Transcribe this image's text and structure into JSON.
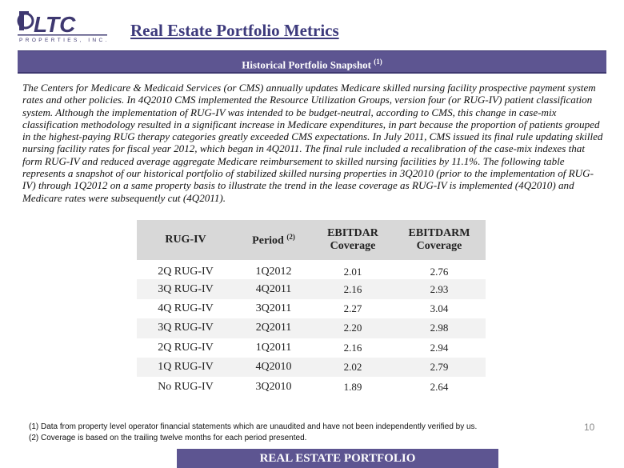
{
  "header": {
    "title": "Real Estate Portfolio Metrics",
    "logo": {
      "main": "LTC",
      "sub": "PROPERTIES, INC."
    }
  },
  "banner": {
    "text": "Historical Portfolio Snapshot",
    "footnote_ref": "(1)"
  },
  "intro": "The Centers for Medicare & Medicaid Services (or CMS) annually updates Medicare skilled nursing facility prospective payment system rates and other policies.  In 4Q2010 CMS implemented the Resource Utilization Groups, version four (or RUG-IV) patient classification system.  Although the implementation of RUG-IV was intended to be budget-neutral, according to CMS, this change in case-mix classification methodology resulted in a significant increase in Medicare expenditures, in part because the proportion of patients grouped in the highest-paying RUG therapy categories greatly exceeded CMS expectations.  In July 2011, CMS issued its final rule updating skilled nursing facility rates for fiscal year 2012, which began in 4Q2011.  The final rule included a recalibration of the case-mix indexes that form RUG-IV and reduced average aggregate Medicare reimbursement to skilled nursing facilities by 11.1%.  The following table represents a snapshot of our historical portfolio of stabilized skilled nursing properties in 3Q2010 (prior to the implementation of RUG-IV) through 1Q2012 on a same property basis to illustrate the trend in the lease coverage as RUG-IV is implemented (4Q2010) and Medicare rates were subsequently cut (4Q2011).",
  "table": {
    "headers": {
      "rug": "RUG-IV",
      "period": "Period",
      "period_ref": "(2)",
      "ebitdar_1": "EBITDAR",
      "ebitdar_2": "Coverage",
      "ebitdarm_1": "EBITDARM",
      "ebitdarm_2": "Coverage"
    },
    "rows": [
      {
        "rug": "2Q RUG-IV",
        "period": "1Q2012",
        "ebitdar": "2.01",
        "ebitdarm": "2.76"
      },
      {
        "rug": "3Q RUG-IV",
        "period": "4Q2011",
        "ebitdar": "2.16",
        "ebitdarm": "2.93"
      },
      {
        "rug": "4Q RUG-IV",
        "period": "3Q2011",
        "ebitdar": "2.27",
        "ebitdarm": "3.04"
      },
      {
        "rug": "3Q RUG-IV",
        "period": "2Q2011",
        "ebitdar": "2.20",
        "ebitdarm": "2.98"
      },
      {
        "rug": "2Q RUG-IV",
        "period": "1Q2011",
        "ebitdar": "2.16",
        "ebitdarm": "2.94"
      },
      {
        "rug": "1Q RUG-IV",
        "period": "4Q2010",
        "ebitdar": "2.02",
        "ebitdarm": "2.79"
      },
      {
        "rug": "No RUG-IV",
        "period": "3Q2010",
        "ebitdar": "1.89",
        "ebitdarm": "2.64"
      }
    ]
  },
  "footnotes": [
    "(1)   Data from property level operator financial statements which are unaudited and have not been independently verified by us.",
    "(2)   Coverage is based on the trailing twelve months for each period presented."
  ],
  "page_number": "10",
  "footer": "REAL ESTATE PORTFOLIO"
}
